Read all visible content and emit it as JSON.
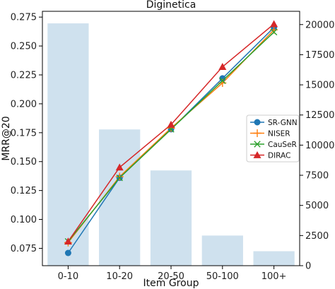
{
  "chart_data": {
    "type": "bar+line",
    "title": "Diginetica",
    "xlabel": "Item Group",
    "ylabel": "MRR@20",
    "categories": [
      "0-10",
      "10-20",
      "20-50",
      "50-100",
      "100+"
    ],
    "ylim": [
      0.06,
      0.28
    ],
    "yticks": [
      0.075,
      0.1,
      0.125,
      0.15,
      0.175,
      0.2,
      0.225,
      0.25,
      0.275
    ],
    "ytick_labels": [
      "0.075",
      "0.100",
      "0.125",
      "0.150",
      "0.175",
      "0.200",
      "0.225",
      "0.250",
      "0.275"
    ],
    "y2lim": [
      0,
      21100
    ],
    "y2ticks": [
      0,
      2500,
      5000,
      7500,
      10000,
      12500,
      15000,
      17500,
      20000
    ],
    "y2tick_labels": [
      "0",
      "2500",
      "5000",
      "7500",
      "10000",
      "12500",
      "15000",
      "17500",
      "20000"
    ],
    "bars": {
      "axis": "right",
      "color": "#cfe1ee",
      "values": [
        20100,
        11300,
        7900,
        2500,
        1200
      ]
    },
    "series": [
      {
        "name": "SR-GNN",
        "color": "#1f77b4",
        "marker": "circle",
        "values": [
          0.071,
          0.136,
          0.178,
          0.222,
          0.266
        ]
      },
      {
        "name": "NISER",
        "color": "#ff7f0e",
        "marker": "plus",
        "values": [
          0.08,
          0.137,
          0.179,
          0.218,
          0.264
        ]
      },
      {
        "name": "CauSeR",
        "color": "#2ca02c",
        "marker": "x",
        "values": [
          0.081,
          0.136,
          0.178,
          0.22,
          0.262
        ]
      },
      {
        "name": "DIRAC",
        "color": "#d62728",
        "marker": "triangle",
        "values": [
          0.081,
          0.145,
          0.182,
          0.232,
          0.269
        ]
      }
    ],
    "grid": false,
    "legend_position": "center-right"
  }
}
